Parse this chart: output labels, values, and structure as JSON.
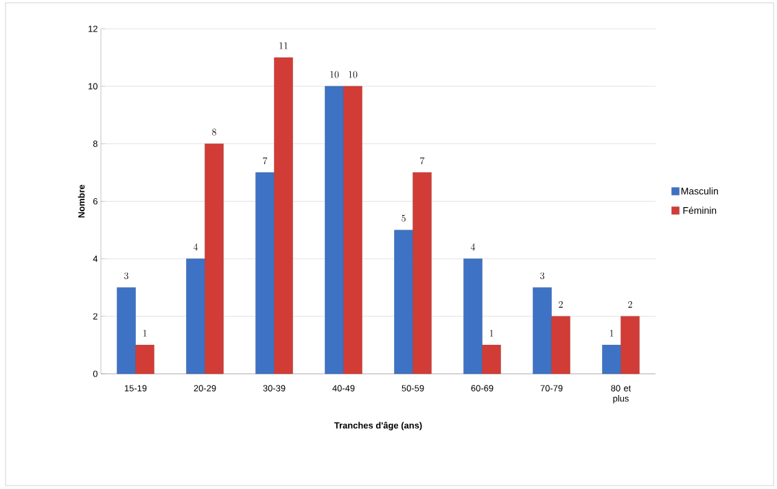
{
  "chart_data": {
    "type": "bar",
    "xlabel": "Tranches d'âge (ans)",
    "ylabel": "Nombre",
    "categories": [
      "15-19",
      "20-29",
      "30-39",
      "40-49",
      "50-59",
      "60-69",
      "70-79",
      "80 et plus"
    ],
    "series": [
      {
        "name": "Masculin",
        "color": "#3d72c4",
        "values": [
          3,
          4,
          7,
          10,
          5,
          4,
          3,
          1
        ]
      },
      {
        "name": "Féminin",
        "color": "#d23c36",
        "values": [
          1,
          8,
          11,
          10,
          7,
          1,
          2,
          2
        ]
      }
    ],
    "ylim": [
      0,
      12
    ],
    "yticks": [
      0,
      2,
      4,
      6,
      8,
      10,
      12
    ],
    "grid": "y",
    "legend": "right",
    "data_labels": true
  }
}
